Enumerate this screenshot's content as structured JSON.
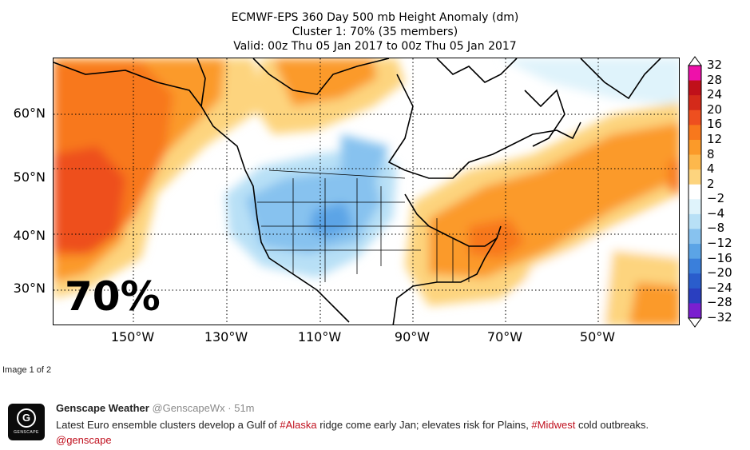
{
  "figure": {
    "title_line1": "ECMWF-EPS 360 Day 500 mb Height Anomaly (dm)",
    "title_line2": "Cluster 1: 70% (35 members)",
    "title_line3": "Valid: 00z Thu 05 Jan 2017 to 00z Thu 05 Jan 2017",
    "overlay_label": "70%",
    "lat_labels": [
      "60°N",
      "50°N",
      "40°N",
      "30°N"
    ],
    "lon_labels": [
      "150°W",
      "130°W",
      "110°W",
      "90°W",
      "70°W",
      "50°W"
    ],
    "colorbar": {
      "labels": [
        "32",
        "28",
        "24",
        "20",
        "16",
        "12",
        "8",
        "4",
        "2",
        "−2",
        "−4",
        "−8",
        "−12",
        "−16",
        "−20",
        "−24",
        "−28",
        "−32"
      ],
      "colors": [
        "#ee11aa",
        "#c0101a",
        "#d42a1a",
        "#ee4f1f",
        "#f8781c",
        "#fb9a29",
        "#fdb84c",
        "#fdd47e",
        "#ffffff",
        "#dff3fb",
        "#b8e0f6",
        "#87c2ef",
        "#5ba4e6",
        "#3a7fdb",
        "#2a5dcc",
        "#2a3fc0",
        "#7a1fd0"
      ]
    },
    "colors": {
      "positive_strong": "#ee4f1f",
      "positive": "#fb9a29",
      "positive_weak": "#fdd47e",
      "negative_weak": "#b8e0f6",
      "negative": "#87c2ef",
      "negative_strong": "#5ba4e6"
    }
  },
  "page": {
    "image_counter": "Image 1 of 2"
  },
  "tweet": {
    "avatar_letter": "G",
    "avatar_name": "GENSCAPE",
    "author_name": "Genscape Weather",
    "handle_time": "@GenscapeWx · 51m",
    "text_part1": "Latest Euro ensemble clusters develop a Gulf of ",
    "hashtag1": "#Alaska",
    "text_part2": " ridge come early Jan; elevates risk for Plains, ",
    "hashtag2": "#Midwest",
    "text_part3": " cold outbreaks.",
    "mention": "@genscape"
  }
}
